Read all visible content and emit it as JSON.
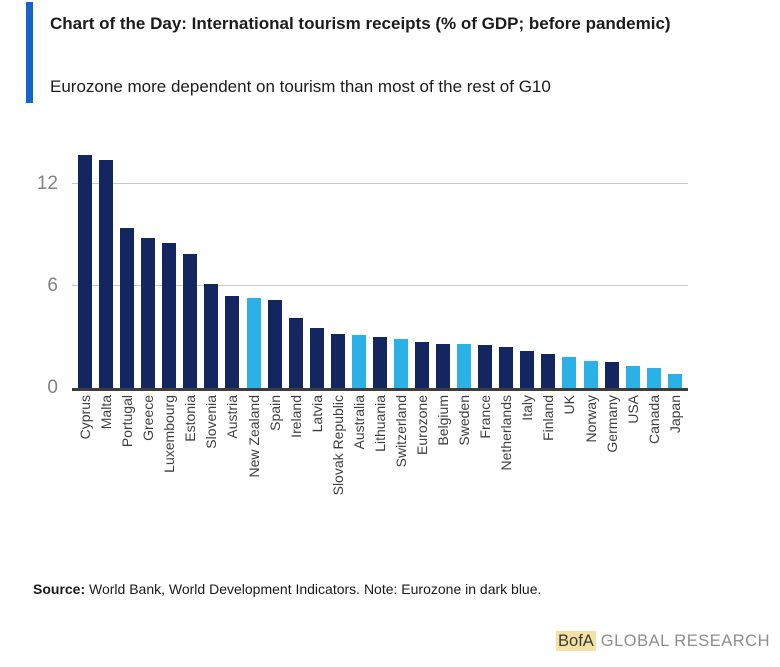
{
  "header": {
    "title": "Chart of the Day: International tourism receipts (% of GDP; before pandemic)",
    "subtitle": "Eurozone more dependent on tourism than most of the rest of G10",
    "accent_color": "#1565c8"
  },
  "chart_data": {
    "type": "bar",
    "title": "International tourism receipts (% of GDP; before pandemic)",
    "xlabel": "",
    "ylabel": "",
    "ylim": [
      0,
      14
    ],
    "yticks": [
      0,
      6,
      12
    ],
    "grid": "horizontal",
    "legend_position": "none",
    "colors": {
      "eurozone_dark": "#13265f",
      "non_eurozone_light": "#2ab2e8",
      "gridline": "#c9c9c9",
      "axis_line": "#3d3d3d",
      "tick_label": "#828282"
    },
    "categories": [
      "Cyprus",
      "Malta",
      "Portugal",
      "Greece",
      "Luxembourg",
      "Estonia",
      "Slovenia",
      "Austria",
      "New Zealand",
      "Spain",
      "Ireland",
      "Latvia",
      "Slovak Republic",
      "Australia",
      "Lithuania",
      "Switzerland",
      "Eurozone",
      "Belgium",
      "Sweden",
      "France",
      "Netherlands",
      "Italy",
      "Finland",
      "UK",
      "Norway",
      "Germany",
      "USA",
      "Canada",
      "Japan"
    ],
    "values": [
      13.7,
      13.4,
      9.4,
      8.8,
      8.5,
      7.9,
      6.1,
      5.4,
      5.3,
      5.2,
      4.1,
      3.5,
      3.2,
      3.1,
      3.0,
      2.9,
      2.7,
      2.6,
      2.6,
      2.5,
      2.4,
      2.2,
      2.0,
      1.8,
      1.6,
      1.5,
      1.3,
      1.2,
      0.8
    ],
    "groups": [
      "dark",
      "dark",
      "dark",
      "dark",
      "dark",
      "dark",
      "dark",
      "dark",
      "light",
      "dark",
      "dark",
      "dark",
      "dark",
      "light",
      "dark",
      "light",
      "dark",
      "dark",
      "light",
      "dark",
      "dark",
      "dark",
      "dark",
      "light",
      "light",
      "dark",
      "light",
      "light",
      "light"
    ]
  },
  "footer": {
    "source_label": "Source:",
    "source_text": " World Bank, World Development Indicators. Note: Eurozone in dark blue.",
    "brand": "BofA",
    "brand_suffix": "GLOBAL RESEARCH",
    "brand_highlight": "#f5e1a4"
  }
}
